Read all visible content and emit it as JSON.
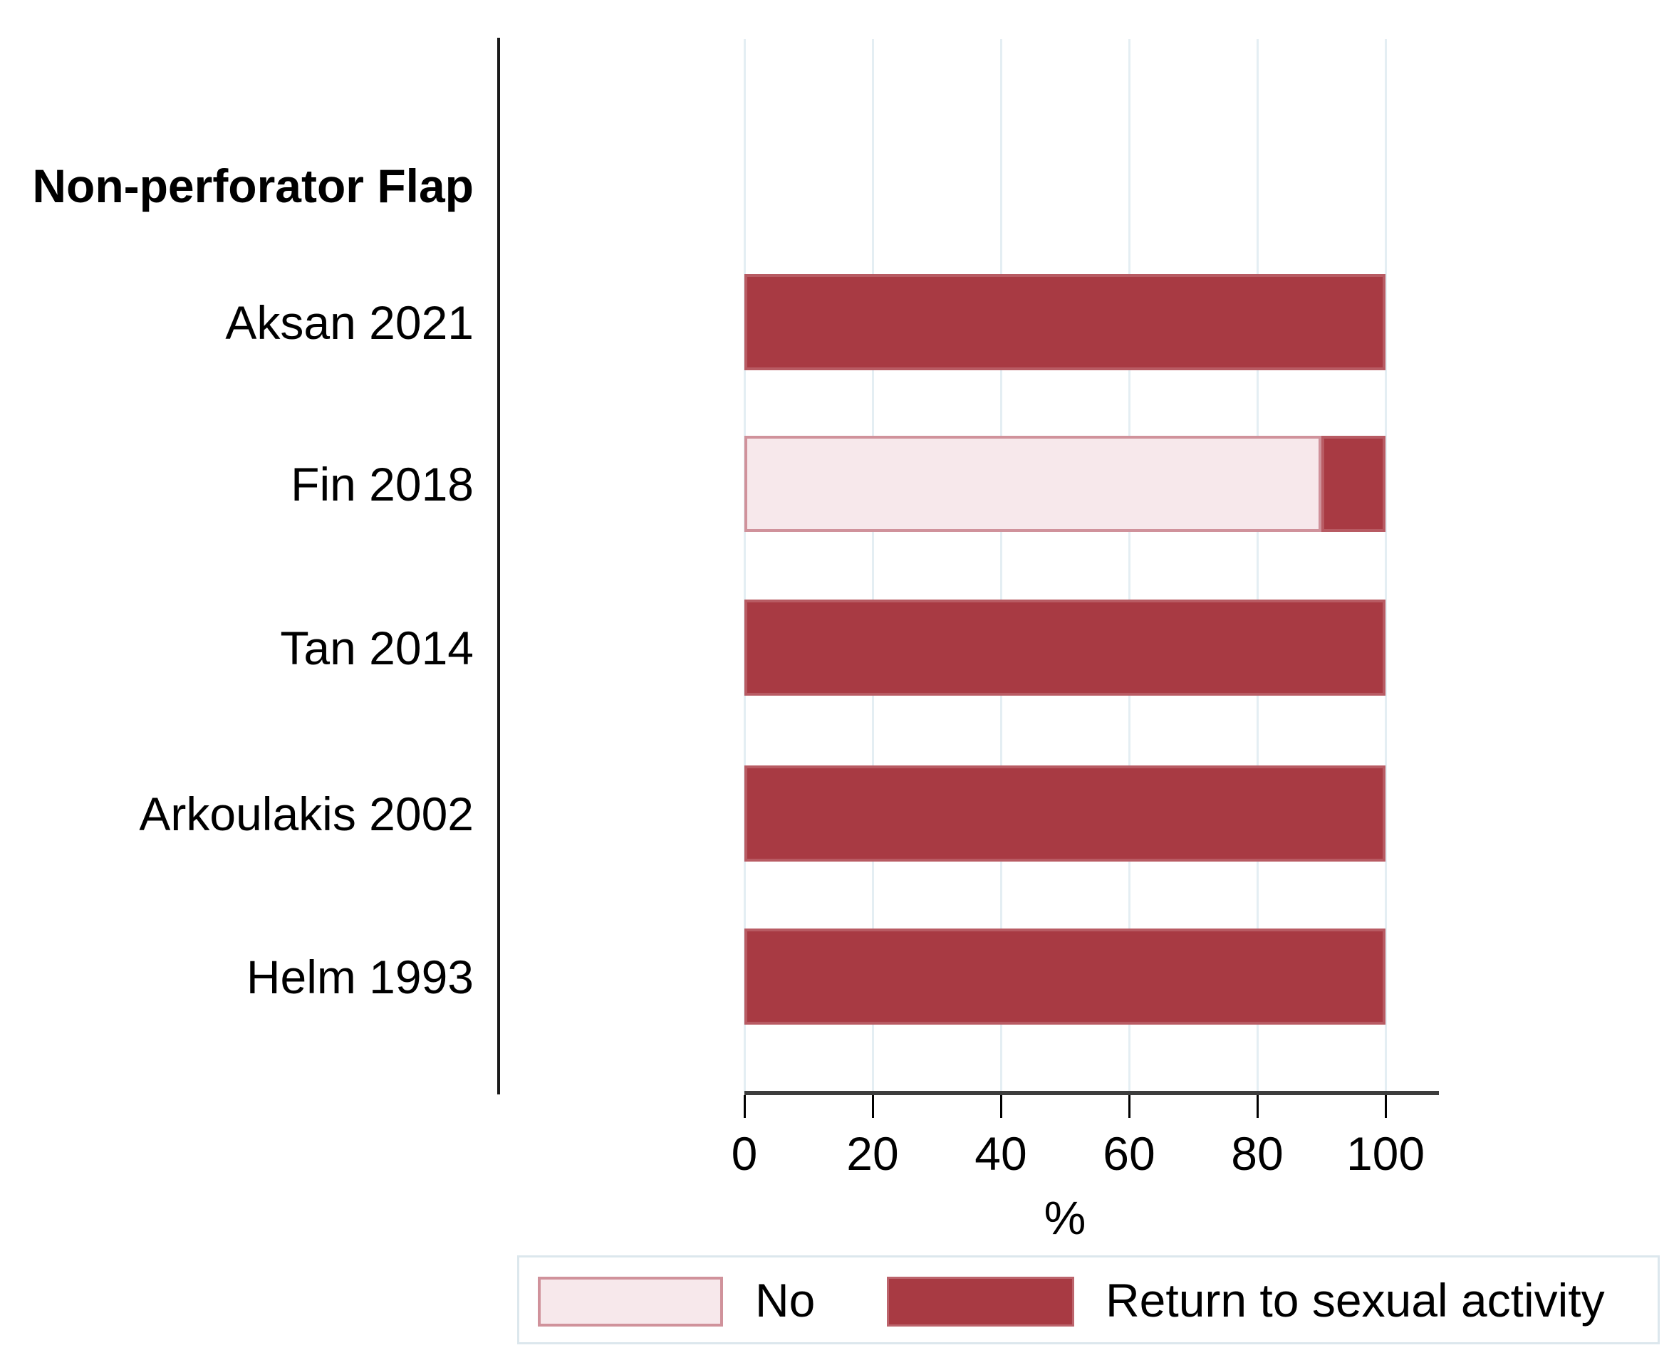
{
  "chart_data": {
    "type": "bar",
    "orientation": "horizontal",
    "stacked": true,
    "group_label": "Non-perforator Flap",
    "categories": [
      "Aksan 2021",
      "Fin 2018",
      "Tan 2014",
      "Arkoulakis 2002",
      "Helm 1993"
    ],
    "series": [
      {
        "name": "No",
        "color": "#f7e8eb",
        "border_color": "#d0929b",
        "values": [
          0,
          90,
          0,
          0,
          0
        ]
      },
      {
        "name": "Return to sexual activity",
        "color": "#a83a43",
        "border_color": "#b85b63",
        "values": [
          100,
          10,
          100,
          100,
          100
        ]
      }
    ],
    "xlabel": "%",
    "x_ticks": [
      "0",
      "20",
      "40",
      "60",
      "80",
      "100"
    ],
    "xlim": [
      0,
      100
    ],
    "grid": "vertical",
    "gridline_color": "#e4eef3",
    "axis_color": "#3d3d3d",
    "legend_position": "bottom"
  }
}
